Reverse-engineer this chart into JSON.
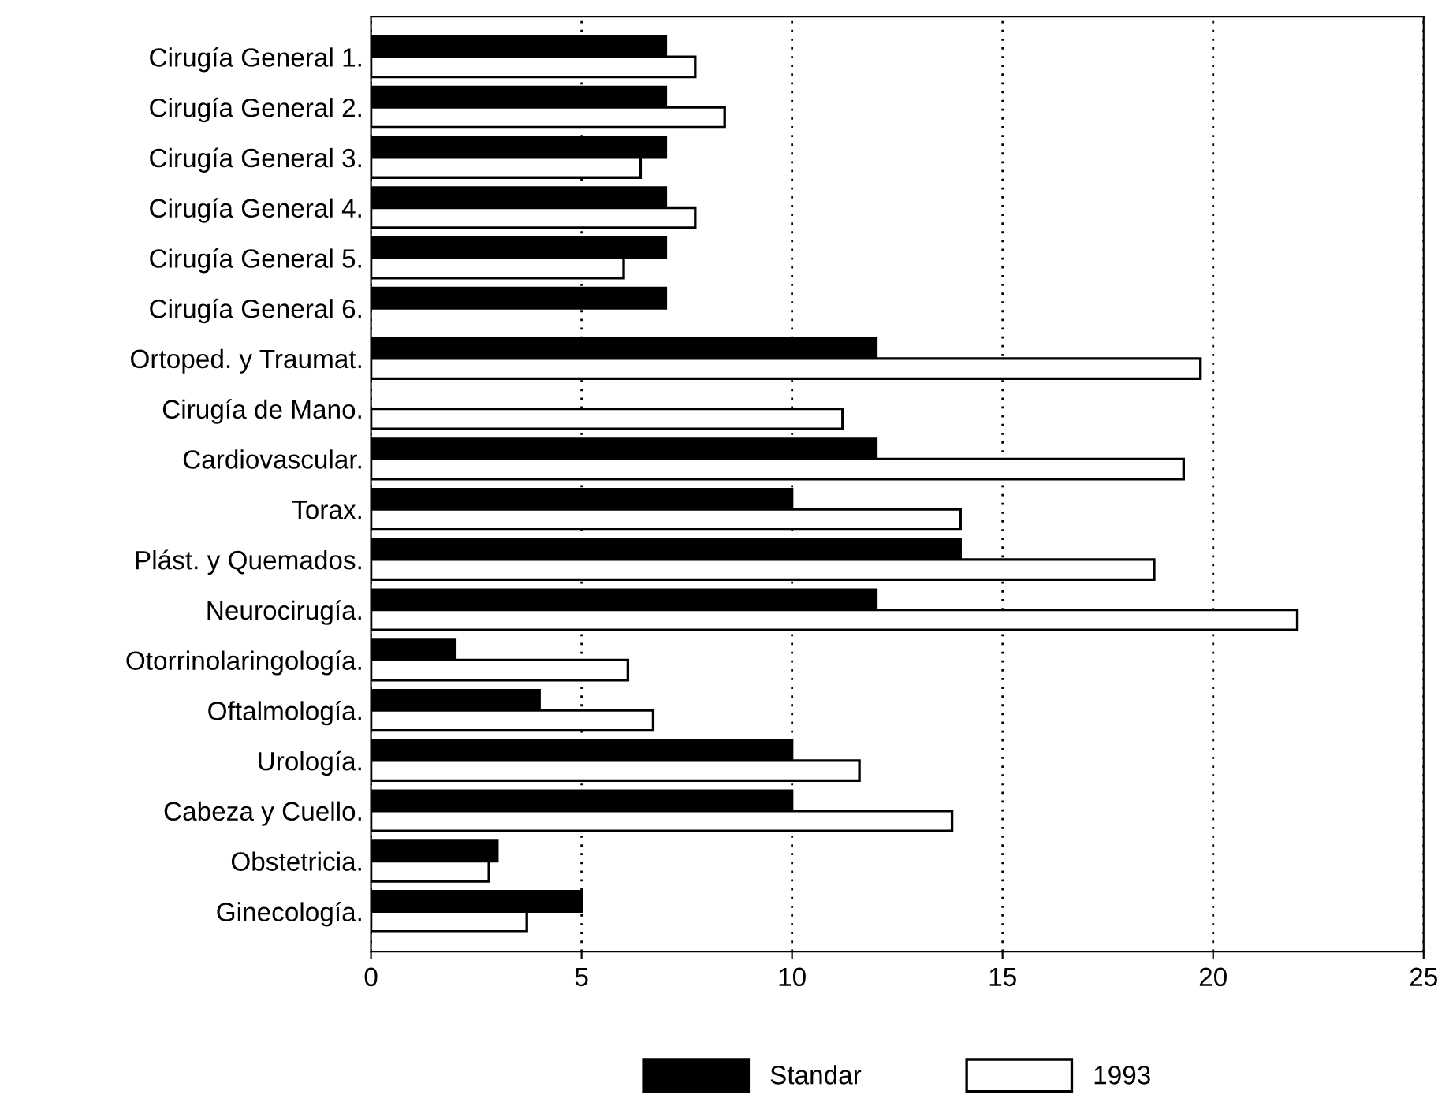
{
  "chart_data": {
    "type": "bar",
    "orientation": "horizontal",
    "categories": [
      "Cirugía General 1.",
      "Cirugía General 2.",
      "Cirugía General 3.",
      "Cirugía General 4.",
      "Cirugía General 5.",
      "Cirugía General 6.",
      "Ortoped. y Traumat.",
      "Cirugía de Mano.",
      "Cardiovascular.",
      "Torax.",
      "Plást. y Quemados.",
      "Neurocirugía.",
      "Otorrinolaringología.",
      "Oftalmología.",
      "Urología.",
      "Cabeza y Cuello.",
      "Obstetricia.",
      "Ginecología."
    ],
    "series": [
      {
        "name": "Standar",
        "color": "#000000",
        "values": [
          7,
          7,
          7,
          7,
          7,
          7,
          12,
          null,
          12,
          10,
          14,
          12,
          2,
          4,
          10,
          10,
          3,
          5
        ]
      },
      {
        "name": "1993",
        "color": "#ffffff",
        "values": [
          7.7,
          8.4,
          6.4,
          7.7,
          6.0,
          null,
          19.7,
          11.2,
          19.3,
          14.0,
          18.6,
          22.0,
          6.1,
          6.7,
          11.6,
          13.8,
          2.8,
          3.7
        ]
      }
    ],
    "xlim": [
      0,
      25
    ],
    "xticks": [
      0,
      5,
      10,
      15,
      20,
      25
    ],
    "grid": "x",
    "legend": "bottom"
  }
}
